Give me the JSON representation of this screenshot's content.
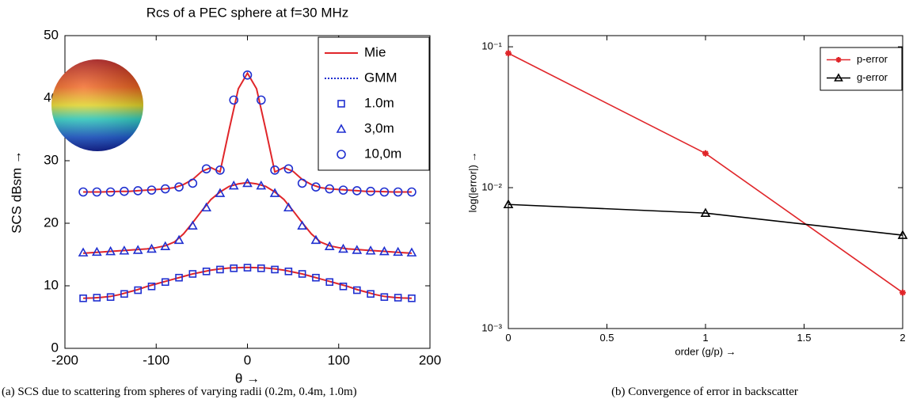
{
  "chart_data": [
    {
      "type": "line",
      "title": "Rcs of a PEC sphere at f=30 MHz",
      "xlabel": "θ →",
      "ylabel": "SCS dBsm →",
      "caption": "(a) SCS due to scattering from spheres of varying radii (0.2m, 0.4m, 1.0m)",
      "xlim": [
        -200,
        200
      ],
      "xticks": [
        -200,
        -100,
        0,
        100,
        200
      ],
      "ylim": [
        0,
        50
      ],
      "yticks": [
        0,
        10,
        20,
        30,
        40,
        50
      ],
      "legend_lines": [
        {
          "name": "Mie",
          "color": "#e0262a",
          "style": "solid"
        },
        {
          "name": "GMM",
          "color": "#1f2fd0",
          "style": "dotted"
        }
      ],
      "x_line": [
        -180,
        -170,
        -160,
        -150,
        -140,
        -130,
        -120,
        -110,
        -100,
        -90,
        -80,
        -70,
        -60,
        -50,
        -40,
        -30,
        -20,
        -10,
        0,
        10,
        20,
        30,
        40,
        50,
        60,
        70,
        80,
        90,
        100,
        110,
        120,
        130,
        140,
        150,
        160,
        170,
        180
      ],
      "x_markers": [
        -180,
        -165,
        -150,
        -135,
        -120,
        -105,
        -90,
        -75,
        -60,
        -45,
        -30,
        -15,
        0,
        15,
        30,
        45,
        60,
        75,
        90,
        105,
        120,
        135,
        150,
        165,
        180
      ],
      "series": [
        {
          "name": "1.0m",
          "marker": "square",
          "color": "#1f2fd0",
          "values": [
            8,
            8.1,
            8.2,
            8.7,
            9.3,
            9.9,
            10.6,
            11.3,
            11.9,
            12.3,
            12.6,
            12.8,
            12.9,
            12.8,
            12.6,
            12.3,
            11.9,
            11.3,
            10.6,
            9.9,
            9.3,
            8.7,
            8.2,
            8.1,
            8
          ],
          "mie_values": [
            8,
            8.05,
            8.15,
            8.3,
            8.6,
            9,
            9.4,
            9.9,
            10.3,
            10.7,
            11.1,
            11.5,
            11.9,
            12.2,
            12.5,
            12.7,
            12.85,
            12.9,
            12.95,
            12.9,
            12.85,
            12.7,
            12.5,
            12.2,
            11.9,
            11.5,
            11.1,
            10.7,
            10.3,
            9.9,
            9.4,
            9,
            8.6,
            8.3,
            8.15,
            8.05,
            8
          ]
        },
        {
          "name": "3,0m",
          "marker": "triangle",
          "color": "#1f2fd0",
          "values": [
            15.3,
            15.4,
            15.5,
            15.6,
            15.7,
            15.9,
            16.3,
            17.3,
            19.6,
            22.5,
            24.8,
            26,
            26.4,
            26,
            24.8,
            22.5,
            19.6,
            17.3,
            16.3,
            15.9,
            15.7,
            15.6,
            15.5,
            15.4,
            15.3
          ],
          "mie_values": [
            15.2,
            15.3,
            15.4,
            15.5,
            15.6,
            15.7,
            15.8,
            15.9,
            16.1,
            16.4,
            17,
            18.3,
            20.1,
            22,
            23.8,
            25,
            25.9,
            26.3,
            26.5,
            26.3,
            25.9,
            25,
            23.8,
            22,
            20.1,
            18.3,
            17,
            16.4,
            16.1,
            15.9,
            15.8,
            15.7,
            15.6,
            15.5,
            15.4,
            15.3,
            15.2
          ]
        },
        {
          "name": "10,0m",
          "marker": "circle",
          "color": "#1f2fd0",
          "values": [
            25,
            25,
            25,
            25.1,
            25.2,
            25.3,
            25.5,
            25.8,
            26.4,
            28.7,
            28.5,
            39.7,
            43.7,
            39.7,
            28.5,
            28.7,
            26.4,
            25.8,
            25.5,
            25.3,
            25.2,
            25.1,
            25,
            25,
            25
          ],
          "mie_values": [
            25,
            25,
            25,
            25.05,
            25.1,
            25.1,
            25.2,
            25.3,
            25.4,
            25.5,
            25.7,
            26.2,
            27,
            28.3,
            28.9,
            28.2,
            35,
            41.5,
            44,
            41.5,
            35,
            28.2,
            28.9,
            28.3,
            27,
            26.2,
            25.7,
            25.5,
            25.4,
            25.3,
            25.2,
            25.1,
            25.1,
            25.05,
            25,
            25,
            25
          ]
        }
      ]
    },
    {
      "type": "line",
      "log_y": true,
      "xlabel": "order (g/p) →",
      "ylabel": "log(|error|) →",
      "caption": "(b) Convergence of error in backscatter",
      "xlim": [
        0,
        2
      ],
      "xticks": [
        0,
        0.5,
        1,
        1.5,
        2
      ],
      "ylim": [
        0.001,
        0.12
      ],
      "yticks": [
        {
          "value": 0.1,
          "label": "10⁻¹"
        },
        {
          "value": 0.01,
          "label": "10⁻²"
        },
        {
          "value": 0.001,
          "label": "10⁻³"
        }
      ],
      "x": [
        0,
        1,
        2
      ],
      "series": [
        {
          "name": "p-error",
          "marker": "star",
          "color": "#e0262a",
          "values": [
            0.09,
            0.0175,
            0.0018
          ]
        },
        {
          "name": "g-error",
          "marker": "triangle",
          "color": "#000000",
          "values": [
            0.0076,
            0.0066,
            0.0046
          ]
        }
      ]
    }
  ]
}
